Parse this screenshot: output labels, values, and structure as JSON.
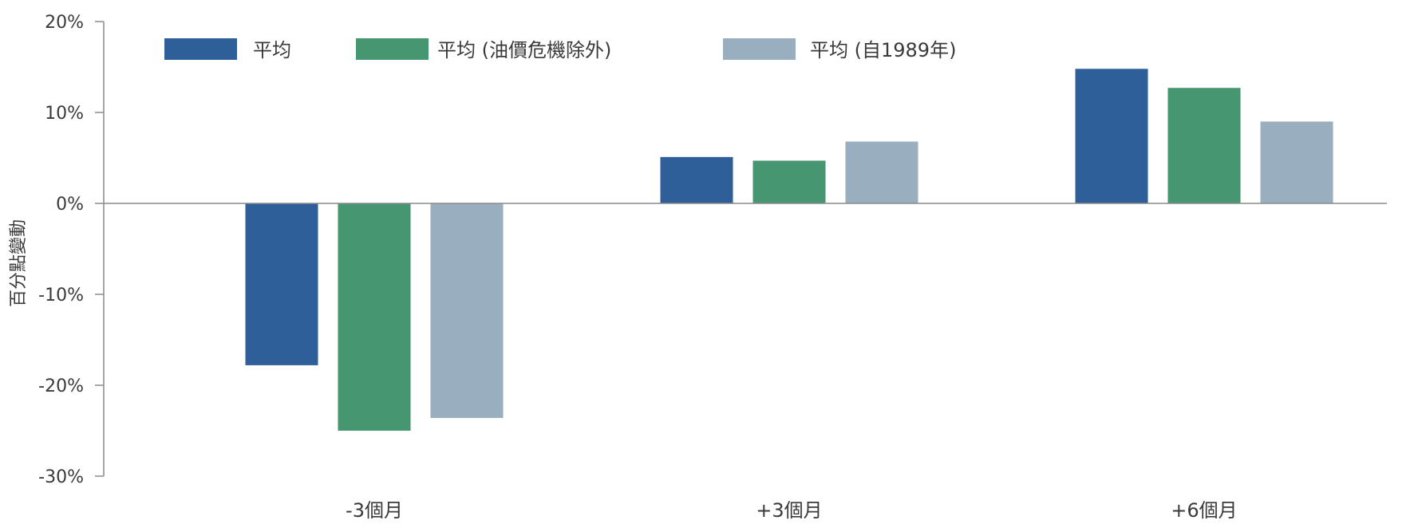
{
  "chart_data": {
    "type": "bar",
    "ylabel": "百分點變動",
    "ylim": [
      -30,
      20
    ],
    "ytick_values": [
      20,
      10,
      0,
      -10,
      -20,
      -30
    ],
    "ytick_labels": [
      "20%",
      "10%",
      "0%",
      "-10%",
      "-20%",
      "-30%"
    ],
    "categories": [
      "-3個月",
      "+3個月",
      "+6個月"
    ],
    "legend_position": "top-left",
    "grid": false,
    "series": [
      {
        "name": "平均",
        "color": "#2e5f99",
        "values": [
          -17.8,
          5.1,
          14.8
        ]
      },
      {
        "name": "平均 (油價危機除外)",
        "color": "#479672",
        "values": [
          -25.0,
          4.7,
          12.7
        ]
      },
      {
        "name": "平均 (自1989年)",
        "color": "#99aebe",
        "values": [
          -23.6,
          6.8,
          9.0
        ]
      }
    ]
  }
}
